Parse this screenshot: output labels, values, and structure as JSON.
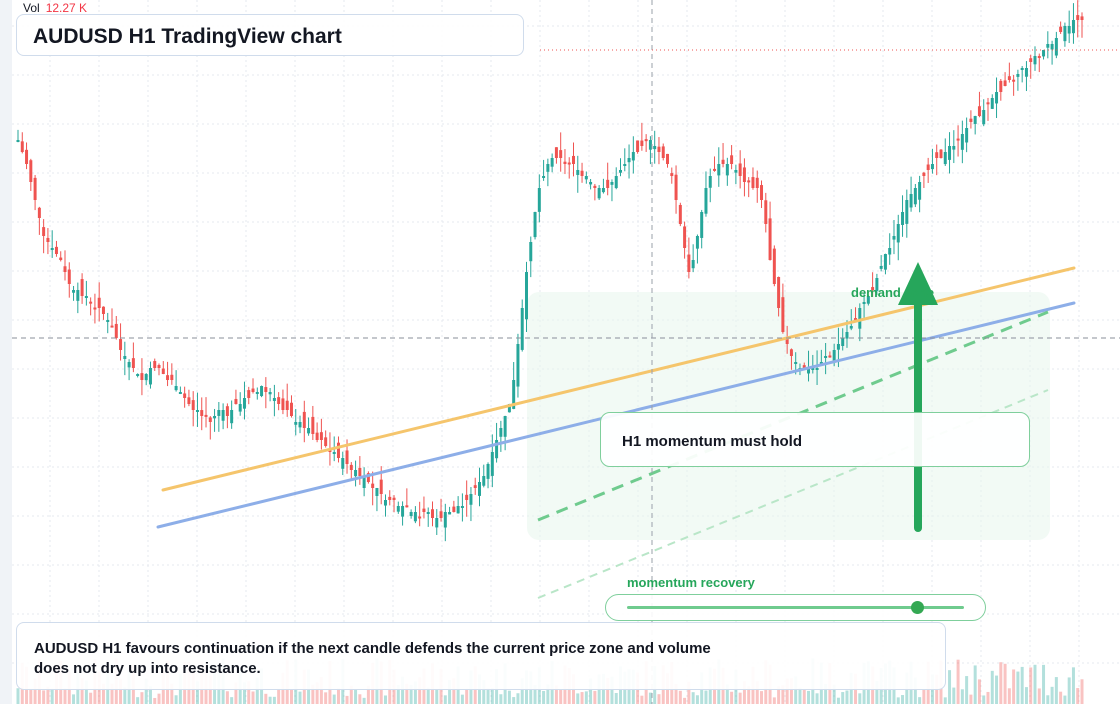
{
  "header": {
    "vol_label": "Vol",
    "vol_value": "12.27 K",
    "title": "AUDUSD H1 TradingView chart"
  },
  "annotations": {
    "callout": "H1 momentum must hold",
    "zone_label": "demand zone",
    "momentum_label": "momentum recovery",
    "momentum_level": 0.86,
    "summary": "AUDUSD H1 favours continuation if the next candle defends the current price zone and volume does not dry up into resistance."
  },
  "colors": {
    "up": "#26a69a",
    "down": "#ef5350",
    "grid": "#e6e9ef",
    "trend_orange": "#f5c56c",
    "trend_blue": "#8daee8",
    "accent_green": "#26a65b",
    "zone_fill": "#e8f6ec"
  },
  "chart_data": {
    "type": "candlestick",
    "title": "AUDUSD H1 TradingView chart",
    "ylim": [
      0,
      100
    ],
    "closes": [
      80,
      78,
      76,
      73,
      70,
      67,
      64,
      63,
      62,
      61,
      60,
      58,
      56,
      55,
      55,
      54,
      54,
      53,
      52,
      52,
      51,
      50,
      49,
      47,
      45,
      44,
      43,
      42,
      41,
      40,
      41,
      42,
      42,
      42,
      41,
      40,
      40,
      39,
      38,
      37,
      36,
      35,
      35,
      34,
      34,
      33,
      34,
      35,
      35,
      34,
      35,
      36,
      36,
      37,
      37,
      38,
      38,
      39,
      38,
      38,
      37,
      36,
      35,
      35,
      34,
      33,
      33,
      32,
      32,
      31,
      30,
      30,
      29,
      28,
      28,
      27,
      27,
      26,
      25,
      25,
      24,
      24,
      23,
      22,
      22,
      21,
      20,
      20,
      20,
      19,
      19,
      19,
      18,
      18,
      17,
      18,
      18,
      17,
      17,
      17,
      18,
      18,
      18,
      19,
      19,
      20,
      21,
      22,
      23,
      24,
      26,
      28,
      30,
      32,
      34,
      36,
      40,
      46,
      52,
      58,
      63,
      68,
      72,
      74,
      76,
      77,
      77,
      77,
      76,
      76,
      76,
      75,
      74,
      74,
      73,
      72,
      72,
      72,
      72,
      73,
      74,
      75,
      76,
      77,
      78,
      78,
      79,
      80,
      80,
      79,
      78,
      77,
      76,
      74,
      70,
      66,
      62,
      58,
      60,
      64,
      68,
      72,
      74,
      75,
      76,
      76,
      76,
      76,
      75,
      74,
      73,
      73,
      72,
      72,
      70,
      66,
      60,
      56,
      52,
      48,
      46,
      44,
      43,
      42,
      42,
      42,
      42,
      42,
      43,
      44,
      44,
      45,
      46,
      47,
      48,
      49,
      50,
      52,
      53,
      54,
      55,
      57,
      59,
      61,
      62,
      64,
      66,
      68,
      70,
      71,
      72,
      73,
      74,
      75,
      76,
      77,
      77,
      78,
      79,
      79,
      80,
      81,
      82,
      83,
      84,
      84,
      85,
      86,
      87,
      88,
      88,
      89,
      90,
      90,
      91,
      92,
      92,
      93,
      94,
      94,
      95,
      96,
      96,
      97,
      98,
      99,
      99,
      100,
      100,
      100
    ]
  }
}
